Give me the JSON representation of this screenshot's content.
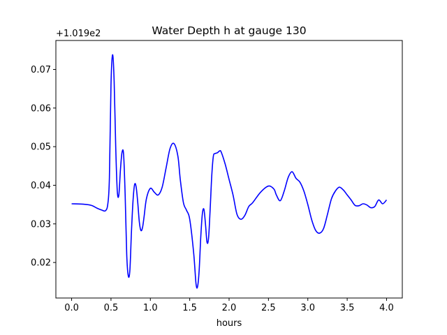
{
  "chart_data": {
    "type": "line",
    "title": "Water Depth h at gauge 130",
    "xlabel": "hours",
    "ylabel": "",
    "offset_label": "+1.019e2",
    "xlim": [
      -0.2,
      4.2
    ],
    "ylim": [
      0.0108,
      0.0775
    ],
    "x_ticks": [
      0.0,
      0.5,
      1.0,
      1.5,
      2.0,
      2.5,
      3.0,
      3.5,
      4.0
    ],
    "x_tick_labels": [
      "0.0",
      "0.5",
      "1.0",
      "1.5",
      "2.0",
      "2.5",
      "3.0",
      "3.5",
      "4.0"
    ],
    "y_ticks": [
      0.02,
      0.03,
      0.04,
      0.05,
      0.06,
      0.07
    ],
    "y_tick_labels": [
      "0.02",
      "0.03",
      "0.04",
      "0.05",
      "0.06",
      "0.07"
    ],
    "grid": false,
    "series": [
      {
        "color": "#0000ff",
        "x": [
          0.0,
          0.15,
          0.25,
          0.32,
          0.38,
          0.43,
          0.46,
          0.48,
          0.5,
          0.52,
          0.54,
          0.56,
          0.58,
          0.6,
          0.62,
          0.64,
          0.66,
          0.68,
          0.7,
          0.72,
          0.74,
          0.76,
          0.78,
          0.8,
          0.82,
          0.84,
          0.86,
          0.88,
          0.9,
          0.92,
          0.95,
          1.0,
          1.05,
          1.1,
          1.15,
          1.2,
          1.25,
          1.3,
          1.35,
          1.38,
          1.42,
          1.46,
          1.5,
          1.55,
          1.58,
          1.6,
          1.62,
          1.64,
          1.66,
          1.68,
          1.7,
          1.72,
          1.74,
          1.76,
          1.78,
          1.8,
          1.82,
          1.85,
          1.88,
          1.9,
          1.95,
          2.0,
          2.05,
          2.1,
          2.15,
          2.2,
          2.25,
          2.3,
          2.4,
          2.5,
          2.57,
          2.6,
          2.65,
          2.7,
          2.75,
          2.8,
          2.85,
          2.9,
          2.95,
          3.0,
          3.05,
          3.1,
          3.15,
          3.2,
          3.25,
          3.3,
          3.35,
          3.4,
          3.45,
          3.5,
          3.55,
          3.6,
          3.65,
          3.7,
          3.75,
          3.8,
          3.85,
          3.9,
          3.95,
          4.0
        ],
        "y": [
          0.0352,
          0.0351,
          0.0348,
          0.0341,
          0.0336,
          0.0334,
          0.0352,
          0.042,
          0.066,
          0.0738,
          0.067,
          0.05,
          0.0385,
          0.0375,
          0.044,
          0.0485,
          0.048,
          0.0375,
          0.022,
          0.0165,
          0.018,
          0.028,
          0.036,
          0.0402,
          0.0395,
          0.0355,
          0.0305,
          0.0283,
          0.029,
          0.0318,
          0.0365,
          0.0392,
          0.0382,
          0.0375,
          0.0395,
          0.0445,
          0.0495,
          0.0508,
          0.0475,
          0.0415,
          0.0355,
          0.0335,
          0.0312,
          0.0225,
          0.0145,
          0.0138,
          0.018,
          0.0265,
          0.0325,
          0.0338,
          0.03,
          0.0252,
          0.0265,
          0.034,
          0.0425,
          0.0475,
          0.0482,
          0.0484,
          0.0489,
          0.0486,
          0.0455,
          0.0415,
          0.0375,
          0.0325,
          0.0312,
          0.0322,
          0.0345,
          0.0355,
          0.0382,
          0.0398,
          0.039,
          0.0375,
          0.036,
          0.0385,
          0.042,
          0.0435,
          0.0418,
          0.0408,
          0.0385,
          0.035,
          0.031,
          0.0283,
          0.0276,
          0.0288,
          0.0325,
          0.0365,
          0.0385,
          0.0395,
          0.0388,
          0.0375,
          0.0362,
          0.0348,
          0.0347,
          0.0352,
          0.0349,
          0.0342,
          0.0345,
          0.0362,
          0.0352,
          0.0362
        ]
      }
    ]
  }
}
